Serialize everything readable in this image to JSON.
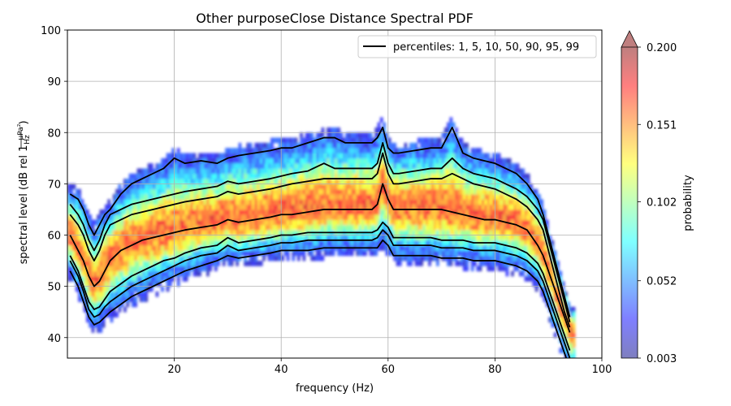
{
  "chart_data": {
    "type": "heatmap",
    "title": "Other purposeClose Distance Spectral PDF",
    "xlabel": "frequency (Hz)",
    "ylabel": {
      "prefix": "spectral level (dB rel 1",
      "frac_num": "μPa²",
      "frac_den": "Hz",
      "suffix": ")"
    },
    "xlim": [
      0,
      100
    ],
    "ylim": [
      36,
      100
    ],
    "xticks": [
      20,
      40,
      60,
      80,
      100
    ],
    "yticks": [
      40,
      50,
      60,
      70,
      80,
      90,
      100
    ],
    "grid": true,
    "legend": {
      "position": "upper right",
      "label": "percentiles: 1, 5, 10, 50, 90, 95, 99",
      "color": "#000000"
    },
    "colorbar": {
      "label": "probability",
      "range": [
        0.003,
        0.2
      ],
      "ticks": [
        0.003,
        0.052,
        0.102,
        0.151,
        0.2
      ],
      "tick_labels": [
        "0.003",
        "0.052",
        "0.102",
        "0.151",
        "0.200"
      ],
      "extend": "max",
      "colormap": "jet",
      "alpha": 0.5
    },
    "x": [
      0.5,
      2,
      3,
      4,
      5,
      6,
      7,
      8,
      10,
      12,
      14,
      16,
      18,
      20,
      22,
      25,
      28,
      30,
      32,
      35,
      38,
      40,
      42,
      45,
      48,
      50,
      52,
      55,
      57,
      58,
      59,
      60,
      61,
      62,
      65,
      68,
      70,
      72,
      74,
      76,
      78,
      80,
      82,
      84,
      86,
      88,
      89,
      90,
      91,
      92,
      93,
      94
    ],
    "series": [
      {
        "name": "1",
        "values": [
          53,
          50,
          47,
          44,
          42.5,
          43,
          44,
          45,
          46.5,
          48,
          49,
          50,
          51,
          52,
          53,
          54,
          55,
          56,
          55.5,
          56,
          56.5,
          57,
          57,
          57,
          57.5,
          57.5,
          57.5,
          57.5,
          57.5,
          57.5,
          59,
          58,
          56,
          56,
          56,
          56,
          55.5,
          55.5,
          55.5,
          55,
          55,
          55,
          54.5,
          54,
          53,
          51,
          49,
          46,
          43,
          40,
          37,
          34
        ]
      },
      {
        "name": "5",
        "values": [
          55,
          52,
          49,
          45.5,
          44,
          44.5,
          46,
          47,
          48.5,
          50,
          51,
          52,
          53,
          54,
          55,
          56,
          56.5,
          58,
          57,
          57.5,
          58,
          58.5,
          58.5,
          59,
          59,
          59,
          59,
          59,
          59,
          59.5,
          61,
          60,
          58,
          58,
          58,
          58,
          57.5,
          57.5,
          57.5,
          57,
          57,
          57,
          56.5,
          56,
          55,
          53,
          51,
          48,
          45,
          42,
          39,
          36
        ]
      },
      {
        "name": "10",
        "values": [
          56,
          53,
          50,
          47,
          45.5,
          46,
          47.5,
          49,
          50.5,
          52,
          53,
          54,
          55,
          55.5,
          56.5,
          57.5,
          58,
          59.5,
          58.5,
          59,
          59.5,
          60,
          60,
          60.5,
          60.5,
          60.5,
          60.5,
          60.5,
          60.5,
          61,
          62.5,
          61.5,
          59.5,
          59.5,
          59.5,
          59.5,
          59,
          59,
          59,
          58.5,
          58.5,
          58.5,
          58,
          57.5,
          56.5,
          54.5,
          52.5,
          49.5,
          46.5,
          43.5,
          40.5,
          37.5
        ]
      },
      {
        "name": "50",
        "values": [
          60,
          57,
          55,
          52,
          50,
          51,
          53,
          55,
          57,
          58,
          59,
          59.5,
          60,
          60.5,
          61,
          61.5,
          62,
          63,
          62.5,
          63,
          63.5,
          64,
          64,
          64.5,
          65,
          65,
          65,
          65,
          65,
          66,
          70,
          67,
          65,
          65,
          65,
          65,
          65,
          64.5,
          64,
          63.5,
          63,
          63,
          62.5,
          62,
          61,
          58,
          56,
          53,
          50,
          47,
          44,
          41
        ]
      },
      {
        "name": "90",
        "values": [
          64,
          62,
          60,
          57,
          55,
          57,
          60,
          62,
          63,
          64,
          64.5,
          65,
          65.5,
          66,
          66.5,
          67,
          67.5,
          68.5,
          68,
          68.5,
          69,
          69.5,
          70,
          70.5,
          71,
          71,
          71,
          71,
          71,
          72,
          76,
          72,
          70,
          70,
          70.5,
          71,
          71,
          72,
          71,
          70,
          69.5,
          69,
          68,
          67,
          65.5,
          63,
          61,
          57,
          53,
          49,
          45,
          42
        ]
      },
      {
        "name": "95",
        "values": [
          66,
          64,
          62,
          59,
          57,
          59,
          62,
          64,
          65,
          66,
          66.5,
          67,
          67.5,
          68,
          68.5,
          69,
          69.5,
          70.5,
          70,
          70.5,
          71,
          71.5,
          72,
          72.5,
          74,
          73,
          73,
          73,
          73,
          74,
          78,
          74,
          72,
          72,
          72.5,
          73,
          73,
          75,
          73,
          72,
          71.5,
          71,
          70,
          69,
          67.5,
          65,
          63,
          59,
          55,
          51,
          47,
          43
        ]
      },
      {
        "name": "99",
        "values": [
          68,
          67,
          65,
          62,
          60,
          62,
          64,
          65,
          68,
          70,
          71,
          72,
          73,
          75,
          74,
          74.5,
          74,
          75,
          75.5,
          76,
          76.5,
          77,
          77,
          78,
          79,
          79,
          78,
          78,
          78,
          79,
          81,
          77,
          76,
          76,
          76.5,
          77,
          77,
          81,
          76,
          75,
          74.5,
          74,
          73,
          72,
          70,
          67,
          64,
          60,
          56,
          52,
          48,
          44
        ]
      }
    ]
  }
}
